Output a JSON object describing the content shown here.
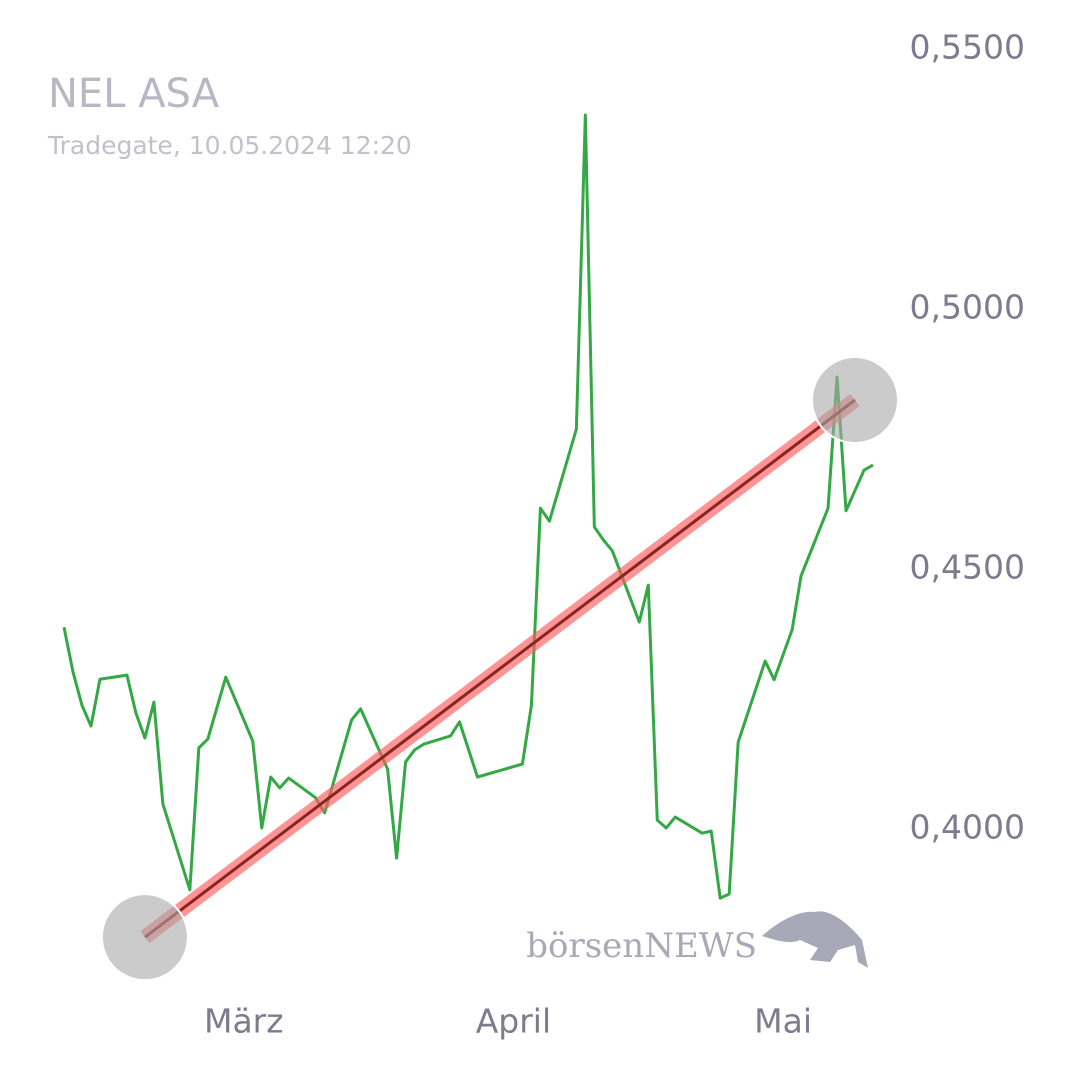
{
  "chart_data": {
    "type": "line",
    "title": "NEL ASA",
    "subtitle": "Tradegate, 10.05.2024 12:20",
    "watermark": "börsenNEWS",
    "x": [
      0,
      1,
      2,
      3,
      4,
      7,
      8,
      9,
      10,
      11,
      14,
      15,
      16,
      18,
      21,
      22,
      23,
      24,
      25,
      28,
      29,
      32,
      33,
      36,
      37,
      38,
      39,
      40,
      43,
      44,
      46,
      51,
      52,
      53,
      54,
      57,
      58,
      59,
      60,
      61,
      64,
      65,
      66,
      67,
      68,
      71,
      72,
      73,
      74,
      75,
      78,
      79,
      81,
      82,
      85,
      86,
      87,
      89,
      90
    ],
    "series": [
      {
        "color": "#34a844",
        "values": [
          0.4388,
          0.4302,
          0.4238,
          0.4198,
          0.4288,
          0.4296,
          0.4223,
          0.4175,
          0.4244,
          0.4048,
          0.3883,
          0.4156,
          0.4173,
          0.4292,
          0.4169,
          0.4002,
          0.41,
          0.4079,
          0.4098,
          0.406,
          0.4031,
          0.421,
          0.4231,
          0.4115,
          0.3944,
          0.4129,
          0.4152,
          0.4163,
          0.4179,
          0.4206,
          0.41,
          0.4125,
          0.4238,
          0.4617,
          0.4592,
          0.4769,
          0.5373,
          0.4581,
          0.4556,
          0.4535,
          0.4398,
          0.4469,
          0.4017,
          0.4002,
          0.4023,
          0.3992,
          0.3996,
          0.3867,
          0.3875,
          0.4167,
          0.4323,
          0.4287,
          0.4383,
          0.4487,
          0.4617,
          0.4869,
          0.4612,
          0.469,
          0.47
        ]
      }
    ],
    "trendline": {
      "x": [
        9,
        88
      ],
      "values": [
        0.3792,
        0.4825
      ],
      "color": "#ff5a5a"
    },
    "xlim": [
      0,
      90
    ],
    "xticks": [
      {
        "value": 20,
        "label": "März"
      },
      {
        "value": 50,
        "label": "April"
      },
      {
        "value": 80,
        "label": "Mai"
      }
    ],
    "ylim": [
      0.37,
      0.56
    ],
    "yticks": [
      {
        "value": 0.55,
        "label": "0,5500"
      },
      {
        "value": 0.5,
        "label": "0,5000"
      },
      {
        "value": 0.45,
        "label": "0,4500"
      },
      {
        "value": 0.4,
        "label": "0,4000"
      }
    ]
  }
}
